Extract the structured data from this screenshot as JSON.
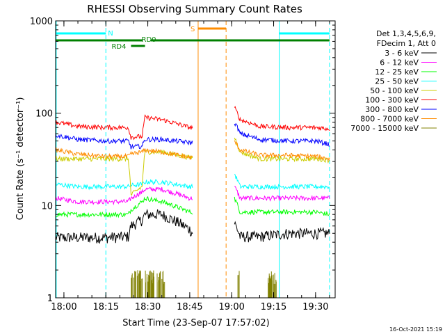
{
  "colors": {
    "axis": "#000000",
    "orbit": "#00ffff",
    "saa": "#ff8c00",
    "attenuator": "#008000"
  },
  "footer_date": "16-Oct-2021 15:19",
  "chart_data": {
    "type": "line",
    "title": "RHESSI Observing Summary Count Rates",
    "xlabel": "Start Time (23-Sep-07 17:57:02)",
    "ylabel": "Count Rate (s⁻¹ detector⁻¹)",
    "yscale": "log",
    "ylim": [
      1,
      1000
    ],
    "xlim": [
      "17:57:02",
      "19:37:00"
    ],
    "x_ticks": [
      "18:00",
      "18:15",
      "18:30",
      "18:45",
      "19:00",
      "19:15",
      "19:30"
    ],
    "y_ticks": [
      "1",
      "10",
      "100",
      "1000"
    ],
    "legend": {
      "position": "right",
      "header": [
        "Det 1,3,4,5,6,9,",
        "FDecim 1, Att 0"
      ]
    },
    "flags": {
      "night_label": "N",
      "night_start": "17:57",
      "night_end": "18:15",
      "night2_start": "19:17",
      "night2_end": "19:35",
      "saa_label": "S",
      "saa_start": "18:48",
      "saa_end": "18:58",
      "rd4_label": "RD4",
      "rd4_start": "18:24",
      "rd4_end": "18:29",
      "rd0_label": "RD0",
      "rd0_start": "18:28",
      "rd0_end": "18:31",
      "att_start": "17:57",
      "att_end": "19:35"
    },
    "data_gap": [
      "18:46",
      "19:01"
    ],
    "x": [
      "17:57",
      "18:05",
      "18:15",
      "18:23",
      "18:24",
      "18:28",
      "18:29",
      "18:35",
      "18:45",
      "18:46",
      "19:01",
      "19:03",
      "19:10",
      "19:20",
      "19:30",
      "19:35"
    ],
    "series": [
      {
        "name": "3 - 6 keV",
        "color": "#000000",
        "values": [
          4.5,
          4.5,
          4.5,
          4.6,
          6.0,
          7.0,
          8.0,
          8.0,
          5.5,
          5.0,
          6.5,
          4.6,
          4.6,
          5.0,
          5.0,
          5.0
        ]
      },
      {
        "name": "6 - 12 keV",
        "color": "#ff00ff",
        "values": [
          12,
          11,
          11,
          11,
          12,
          14,
          15,
          15,
          12,
          12,
          16,
          12,
          12,
          12,
          12,
          12
        ]
      },
      {
        "name": "12 - 25 keV",
        "color": "#00ff00",
        "values": [
          8,
          8,
          8,
          8,
          9,
          11,
          12,
          11,
          8.5,
          8.5,
          12,
          8.5,
          8.5,
          8.5,
          8.5,
          8
        ]
      },
      {
        "name": "25 - 50 keV",
        "color": "#00ffff",
        "values": [
          17,
          16,
          16,
          16,
          16.5,
          17,
          18,
          18,
          16,
          16,
          22,
          16,
          16,
          16,
          16,
          16
        ]
      },
      {
        "name": "50 - 100 keV",
        "color": "#cccc00",
        "values": [
          32,
          32,
          32,
          32,
          13,
          16,
          38,
          38,
          33,
          33,
          55,
          38,
          32,
          32,
          32,
          31
        ]
      },
      {
        "name": "100 - 300 keV",
        "color": "#ff0000",
        "values": [
          80,
          72,
          70,
          70,
          55,
          56,
          90,
          85,
          70,
          70,
          115,
          85,
          72,
          70,
          70,
          68
        ]
      },
      {
        "name": "300 - 800 keV",
        "color": "#0000ff",
        "values": [
          58,
          52,
          50,
          50,
          43,
          44,
          52,
          52,
          48,
          48,
          80,
          60,
          52,
          50,
          50,
          46
        ]
      },
      {
        "name": "800 - 7000 keV",
        "color": "#ff8c00",
        "values": [
          40,
          36,
          34,
          34,
          36,
          38,
          40,
          38,
          33,
          33,
          50,
          40,
          35,
          35,
          34,
          32
        ]
      },
      {
        "name": "7000 - 15000 keV",
        "color": "#808000",
        "values": [
          1,
          1,
          1,
          1,
          1.1,
          1.2,
          1.1,
          1.1,
          1,
          1,
          1,
          1,
          1,
          1,
          1,
          1
        ]
      }
    ]
  }
}
